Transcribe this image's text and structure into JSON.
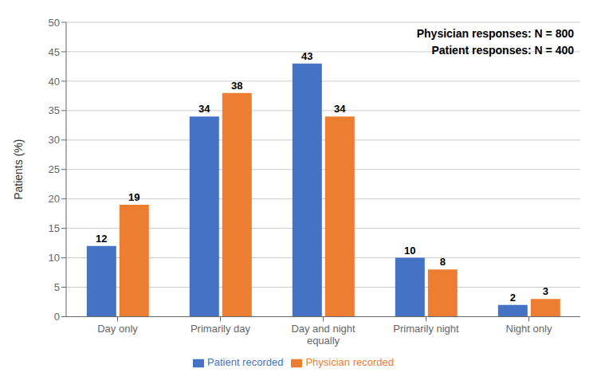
{
  "chart_data": {
    "type": "bar",
    "categories": [
      "Day only",
      "Primarily day",
      "Day and night\nequally",
      "Primarily night",
      "Night only"
    ],
    "series": [
      {
        "name": "Patient recorded",
        "color": "#4472C4",
        "values": [
          12,
          34,
          43,
          10,
          2
        ]
      },
      {
        "name": "Physician recorded",
        "color": "#ED7D31",
        "values": [
          19,
          38,
          34,
          8,
          3
        ]
      }
    ],
    "ylabel": "Patients (%)",
    "ylim": [
      0,
      50
    ],
    "yticks": [
      0,
      5,
      10,
      15,
      20,
      25,
      30,
      35,
      40,
      45,
      50
    ],
    "annotations": [
      "Physician responses: N = 800",
      "Patient responses: N = 400"
    ],
    "grid": true,
    "legend": "bottom",
    "data_labels": true
  }
}
